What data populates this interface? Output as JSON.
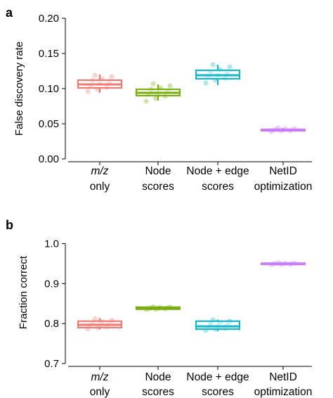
{
  "chart_data": [
    {
      "type": "box",
      "panel_label": "a",
      "ylabel": "False discovery rate",
      "ylim": [
        0,
        0.2
      ],
      "yticks": [
        0.0,
        0.05,
        0.1,
        0.15,
        0.2
      ],
      "ytick_labels": [
        "0.00",
        "0.05",
        "0.10",
        "0.15",
        "0.20"
      ],
      "categories": [
        {
          "line1": "m/z",
          "line1_italic": true,
          "line2": "only"
        },
        {
          "line1": "Node",
          "line2": "scores"
        },
        {
          "line1": "Node + edge",
          "line2": "scores"
        },
        {
          "line1": "NetID",
          "line2": "optimization"
        }
      ],
      "boxes": [
        {
          "color": "#F07A72",
          "q1": 0.101,
          "median": 0.106,
          "q3": 0.112,
          "whisker_low": 0.094,
          "whisker_high": 0.12,
          "points": [
            0.096,
            0.099,
            0.102,
            0.104,
            0.107,
            0.109,
            0.112,
            0.114,
            0.117,
            0.119
          ]
        },
        {
          "color": "#7AAE0E",
          "q1": 0.09,
          "median": 0.094,
          "q3": 0.099,
          "whisker_low": 0.083,
          "whisker_high": 0.106,
          "points": [
            0.082,
            0.086,
            0.089,
            0.092,
            0.094,
            0.096,
            0.099,
            0.101,
            0.104,
            0.107
          ]
        },
        {
          "color": "#14B8C8",
          "q1": 0.114,
          "median": 0.119,
          "q3": 0.126,
          "whisker_low": 0.105,
          "whisker_high": 0.134,
          "points": [
            0.108,
            0.112,
            0.115,
            0.117,
            0.119,
            0.121,
            0.124,
            0.127,
            0.131,
            0.134
          ]
        },
        {
          "color": "#C77CFF",
          "q1": 0.04,
          "median": 0.041,
          "q3": 0.042,
          "whisker_low": 0.039,
          "whisker_high": 0.044,
          "points": [
            0.039,
            0.04,
            0.04,
            0.041,
            0.041,
            0.042,
            0.042,
            0.043,
            0.043,
            0.044
          ]
        }
      ]
    },
    {
      "type": "box",
      "panel_label": "b",
      "ylabel": "Fraction correct",
      "ylim": [
        0.7,
        1.05
      ],
      "yticks": [
        0.7,
        0.8,
        0.9,
        1.0
      ],
      "ytick_labels": [
        "0.7",
        "0.8",
        "0.9",
        "1.0"
      ],
      "categories": [
        {
          "line1": "m/z",
          "line1_italic": true,
          "line2": "only"
        },
        {
          "line1": "Node",
          "line2": "scores"
        },
        {
          "line1": "Node + edge",
          "line2": "scores"
        },
        {
          "line1": "NetID",
          "line2": "optimization"
        }
      ],
      "boxes": [
        {
          "color": "#F07A72",
          "q1": 0.79,
          "median": 0.797,
          "q3": 0.806,
          "whisker_low": 0.785,
          "whisker_high": 0.814,
          "points": [
            0.787,
            0.79,
            0.792,
            0.795,
            0.797,
            0.8,
            0.802,
            0.805,
            0.808,
            0.812
          ]
        },
        {
          "color": "#7AAE0E",
          "q1": 0.836,
          "median": 0.838,
          "q3": 0.841,
          "whisker_low": 0.834,
          "whisker_high": 0.843,
          "points": [
            0.835,
            0.836,
            0.837,
            0.837,
            0.838,
            0.839,
            0.839,
            0.84,
            0.841,
            0.842
          ]
        },
        {
          "color": "#14B8C8",
          "q1": 0.786,
          "median": 0.793,
          "q3": 0.806,
          "whisker_low": 0.781,
          "whisker_high": 0.81,
          "points": [
            0.783,
            0.786,
            0.788,
            0.791,
            0.793,
            0.796,
            0.799,
            0.802,
            0.806,
            0.809
          ]
        },
        {
          "color": "#C77CFF",
          "q1": 0.948,
          "median": 0.949,
          "q3": 0.951,
          "whisker_low": 0.947,
          "whisker_high": 0.952,
          "points": [
            0.947,
            0.948,
            0.948,
            0.949,
            0.949,
            0.95,
            0.95,
            0.951,
            0.951,
            0.952
          ]
        }
      ]
    }
  ]
}
